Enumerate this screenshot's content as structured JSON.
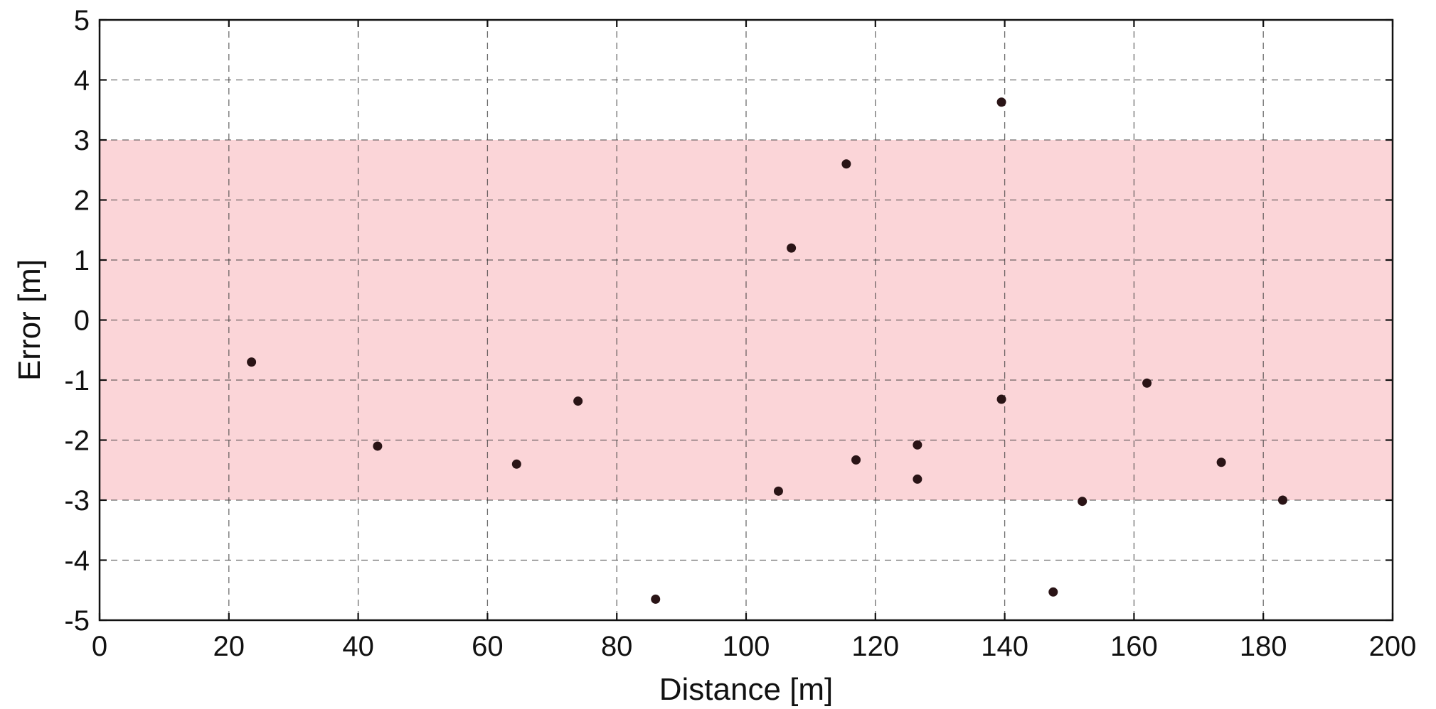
{
  "chart_data": {
    "type": "scatter",
    "xlabel": "Distance [m]",
    "ylabel": "Error [m]",
    "xlim": [
      0,
      200
    ],
    "ylim": [
      -5,
      5
    ],
    "xticks": [
      0,
      20,
      40,
      60,
      80,
      100,
      120,
      140,
      160,
      180,
      200
    ],
    "yticks": [
      5,
      4,
      3,
      2,
      1,
      0,
      -1,
      -2,
      -3,
      -4,
      -5
    ],
    "grid": true,
    "band": {
      "y_from": -3,
      "y_to": 3,
      "color": "#fbd5d8"
    },
    "marker_color": "#2a1416",
    "points": [
      {
        "x": 23.5,
        "y": -0.7
      },
      {
        "x": 43,
        "y": -2.1
      },
      {
        "x": 64.5,
        "y": -2.4
      },
      {
        "x": 74,
        "y": -1.35
      },
      {
        "x": 86,
        "y": -4.65
      },
      {
        "x": 105,
        "y": -2.85
      },
      {
        "x": 107,
        "y": 1.2
      },
      {
        "x": 115.5,
        "y": 2.6
      },
      {
        "x": 117,
        "y": -2.33
      },
      {
        "x": 126.5,
        "y": -2.08
      },
      {
        "x": 126.5,
        "y": -2.65
      },
      {
        "x": 139.5,
        "y": 3.63
      },
      {
        "x": 139.5,
        "y": -1.32
      },
      {
        "x": 147.5,
        "y": -4.53
      },
      {
        "x": 152,
        "y": -3.02
      },
      {
        "x": 162,
        "y": -1.05
      },
      {
        "x": 173.5,
        "y": -2.37
      },
      {
        "x": 183,
        "y": -3.0
      }
    ]
  }
}
